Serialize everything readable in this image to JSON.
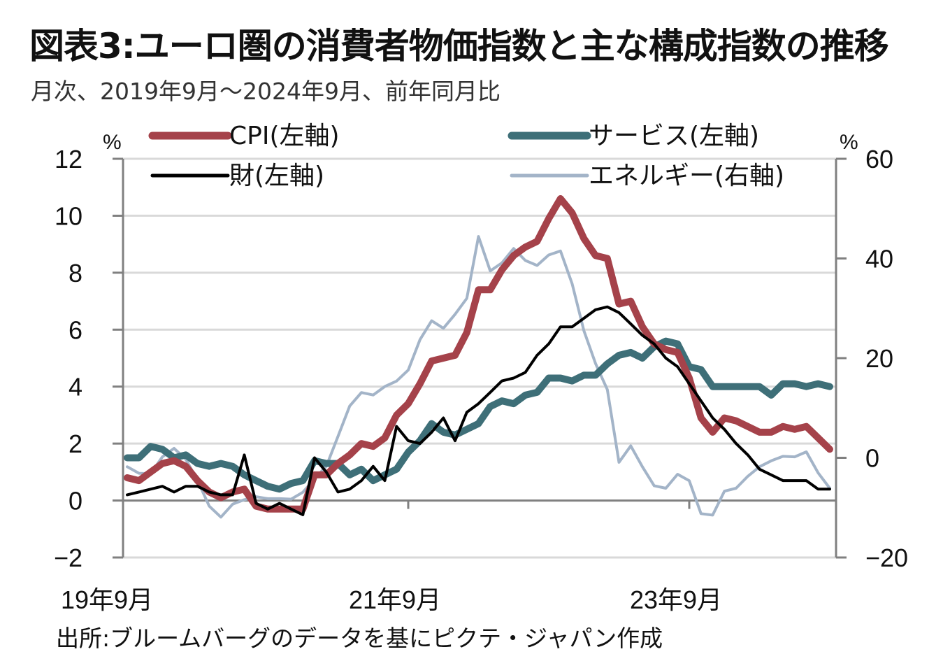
{
  "title": "図表3:ユーロ圏の消費者物価指数と主な構成指数の推移",
  "subtitle": "月次、2019年9月～2024年9月、前年同月比",
  "source": "出所:ブルームバーグのデータを基にピクテ・ジャパン作成",
  "chart_data": {
    "type": "line",
    "title": "図表3:ユーロ圏の消費者物価指数と主な構成指数の推移",
    "subtitle": "月次、2019年9月～2024年9月、前年同月比",
    "xlabel": "",
    "ylabel_left": "%",
    "ylabel_right": "%",
    "x_start": "2019-09",
    "x_end": "2024-09",
    "x_ticks": [
      {
        "index": 0,
        "label": "19年9月"
      },
      {
        "index": 24,
        "label": "21年9月"
      },
      {
        "index": 48,
        "label": "23年9月"
      }
    ],
    "ylim_left": [
      -2,
      12
    ],
    "yticks_left": [
      -2,
      0,
      2,
      4,
      6,
      8,
      10,
      12
    ],
    "ylim_right": [
      -20,
      60
    ],
    "yticks_right": [
      -20,
      0,
      20,
      40,
      60
    ],
    "grid": true,
    "legend_position": "top",
    "colors": {
      "cpi": "#A5424A",
      "services": "#3E6F78",
      "goods": "#000000",
      "energy": "#A3B4C8",
      "grid": "#D9D9D9",
      "axis": "#808080"
    },
    "series": [
      {
        "key": "cpi",
        "name": "CPI(左軸)",
        "axis": "left",
        "values": [
          0.8,
          0.7,
          1.0,
          1.3,
          1.4,
          1.2,
          0.7,
          0.3,
          0.1,
          0.3,
          0.4,
          -0.2,
          -0.3,
          -0.3,
          -0.3,
          -0.3,
          0.9,
          0.9,
          1.3,
          1.6,
          2.0,
          1.9,
          2.2,
          3.0,
          3.4,
          4.1,
          4.9,
          5.0,
          5.1,
          5.9,
          7.4,
          7.4,
          8.1,
          8.6,
          8.9,
          9.1,
          9.9,
          10.6,
          10.1,
          9.2,
          8.6,
          8.5,
          6.9,
          7.0,
          6.1,
          5.5,
          5.3,
          5.2,
          4.3,
          2.9,
          2.4,
          2.9,
          2.8,
          2.6,
          2.4,
          2.4,
          2.6,
          2.5,
          2.6,
          2.2,
          1.8
        ]
      },
      {
        "key": "services",
        "name": "サービス(左軸)",
        "axis": "left",
        "values": [
          1.5,
          1.5,
          1.9,
          1.8,
          1.5,
          1.6,
          1.3,
          1.2,
          1.3,
          1.2,
          0.9,
          0.7,
          0.5,
          0.4,
          0.6,
          0.7,
          1.4,
          1.3,
          1.3,
          0.9,
          1.1,
          0.7,
          0.9,
          1.1,
          1.7,
          2.1,
          2.7,
          2.4,
          2.3,
          2.5,
          2.7,
          3.3,
          3.5,
          3.4,
          3.7,
          3.8,
          4.3,
          4.3,
          4.2,
          4.4,
          4.4,
          4.8,
          5.1,
          5.2,
          5.0,
          5.4,
          5.6,
          5.5,
          4.7,
          4.6,
          4.0,
          4.0,
          4.0,
          4.0,
          4.0,
          3.7,
          4.1,
          4.1,
          4.0,
          4.1,
          4.0
        ]
      },
      {
        "key": "goods",
        "name": "財(左軸)",
        "axis": "left",
        "values": [
          0.2,
          0.3,
          0.4,
          0.5,
          0.3,
          0.5,
          0.5,
          0.3,
          0.2,
          0.2,
          1.6,
          -0.1,
          -0.3,
          -0.1,
          -0.3,
          -0.5,
          1.5,
          1.0,
          0.3,
          0.4,
          0.7,
          1.2,
          0.7,
          2.6,
          2.1,
          2.0,
          2.4,
          2.9,
          2.1,
          3.1,
          3.4,
          3.8,
          4.2,
          4.3,
          4.5,
          5.1,
          5.5,
          6.1,
          6.1,
          6.4,
          6.7,
          6.8,
          6.6,
          6.2,
          5.8,
          5.5,
          5.0,
          4.7,
          4.1,
          3.5,
          2.9,
          2.5,
          2.0,
          1.6,
          1.1,
          0.9,
          0.7,
          0.7,
          0.7,
          0.4,
          0.4
        ]
      },
      {
        "key": "energy",
        "name": "エネルギー(右軸)",
        "axis": "right",
        "values": [
          -1.8,
          -3.1,
          -3.2,
          0.2,
          1.9,
          -0.3,
          -4.5,
          -9.7,
          -11.9,
          -9.3,
          -8.4,
          -7.8,
          -8.2,
          -8.2,
          -8.3,
          -6.9,
          -4.2,
          -1.7,
          4.3,
          10.4,
          13.1,
          12.6,
          14.3,
          15.4,
          17.6,
          23.7,
          27.5,
          26.0,
          28.8,
          32.0,
          44.4,
          37.5,
          39.1,
          42.0,
          39.6,
          38.6,
          40.7,
          41.5,
          34.9,
          25.5,
          18.9,
          13.7,
          -0.9,
          2.4,
          -1.8,
          -5.6,
          -6.1,
          -3.3,
          -4.6,
          -11.2,
          -11.5,
          -6.7,
          -6.1,
          -3.7,
          -1.8,
          -0.6,
          0.3,
          0.2,
          1.2,
          -3.0,
          -6.1
        ]
      }
    ],
    "legend": [
      {
        "key": "cpi",
        "label": "CPI(左軸)"
      },
      {
        "key": "services",
        "label": "サービス(左軸)"
      },
      {
        "key": "goods",
        "label": "財(左軸)"
      },
      {
        "key": "energy",
        "label": "エネルギー(右軸)"
      }
    ]
  }
}
